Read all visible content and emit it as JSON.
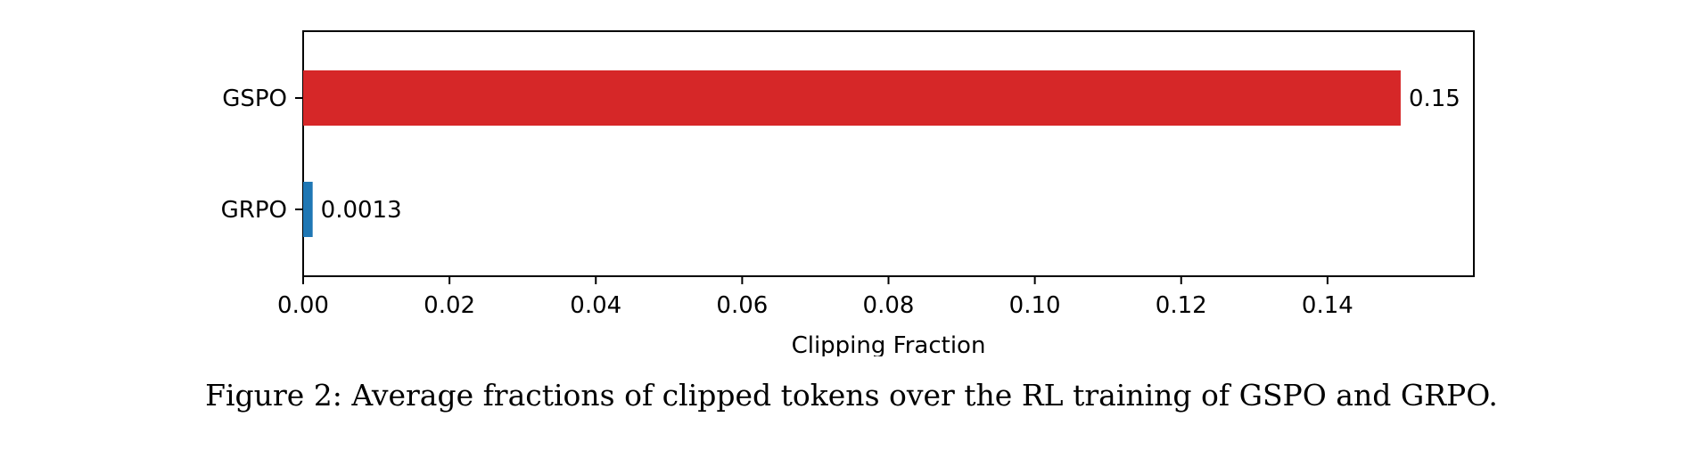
{
  "chart_data": {
    "type": "bar",
    "orientation": "horizontal",
    "categories": [
      "GRPO",
      "GSPO"
    ],
    "values": [
      0.0013,
      0.15
    ],
    "value_labels": [
      "0.0013",
      "0.15"
    ],
    "colors": [
      "#1f77b4",
      "#d62728"
    ],
    "xlabel": "Clipping Fraction",
    "xlim": [
      0,
      0.16
    ],
    "xticks": [
      0.0,
      0.02,
      0.04,
      0.06,
      0.08,
      0.1,
      0.12,
      0.14
    ],
    "xtick_labels": [
      "0.00",
      "0.02",
      "0.04",
      "0.06",
      "0.08",
      "0.10",
      "0.12",
      "0.14"
    ],
    "grid": false,
    "legend": false
  },
  "caption": "Figure 2: Average fractions of clipped tokens over the RL training of GSPO and GRPO."
}
